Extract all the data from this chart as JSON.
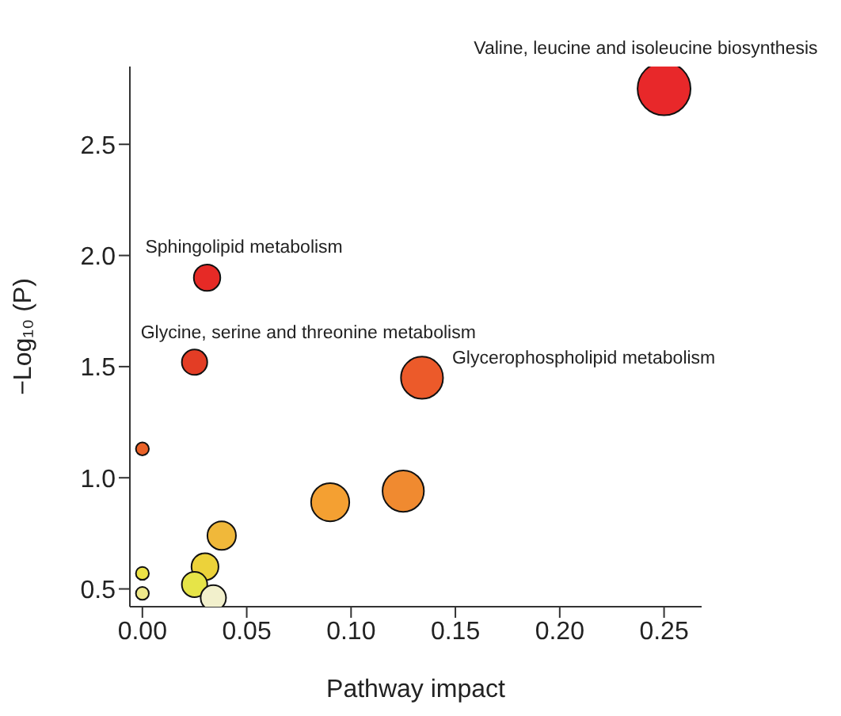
{
  "chart_data": {
    "type": "bubble",
    "xlabel": "Pathway impact",
    "ylabel": "−Log₁₀ (P)",
    "x": [
      0.25,
      0.031,
      0.025,
      0.134,
      0,
      0.125,
      0.09,
      0.038,
      0.03,
      0.025,
      0.034,
      0,
      0
    ],
    "values": [
      2.75,
      1.9,
      1.52,
      1.45,
      1.13,
      0.94,
      0.89,
      0.74,
      0.6,
      0.52,
      0.46,
      0.57,
      0.48
    ],
    "sizes": [
      1,
      0.25,
      0.23,
      0.63,
      0.06,
      0.61,
      0.52,
      0.29,
      0.26,
      0.23,
      0.23,
      0.06,
      0.06
    ],
    "colors": [
      "#e8282a",
      "#e62a26",
      "#e33d25",
      "#ec5a2a",
      "#ea6228",
      "#f08a30",
      "#f4a032",
      "#f0b83a",
      "#ecd23a",
      "#e6e448",
      "#f2f0cc",
      "#ece246",
      "#eee88a"
    ],
    "xlim": [
      -0.006,
      0.268
    ],
    "ylim": [
      0.42,
      2.85
    ],
    "xticks": [
      {
        "value": 0,
        "label": "0.00"
      },
      0.05,
      {
        "value": 0.1,
        "label": "0.10"
      },
      0.15,
      {
        "value": 0.2,
        "label": "0.20"
      },
      0.25
    ],
    "yticks": [
      0.5,
      {
        "value": 1,
        "label": "1.0"
      },
      1.5,
      {
        "value": 2,
        "label": "2.0"
      },
      2.5
    ],
    "grid": false,
    "legend": false,
    "annotations": [
      {
        "text": "Valine, leucine and isoleucine biosynthesis",
        "x": 0.25,
        "y": 2.75
      },
      {
        "text": "Sphingolipid metabolism",
        "x": 0.031,
        "y": 1.9
      },
      {
        "text": "Glycine, serine and threonine metabolism",
        "x": 0.025,
        "y": 1.52
      },
      {
        "text": "Glycerophospholipid metabolism",
        "x": 0.134,
        "y": 1.45
      }
    ]
  }
}
